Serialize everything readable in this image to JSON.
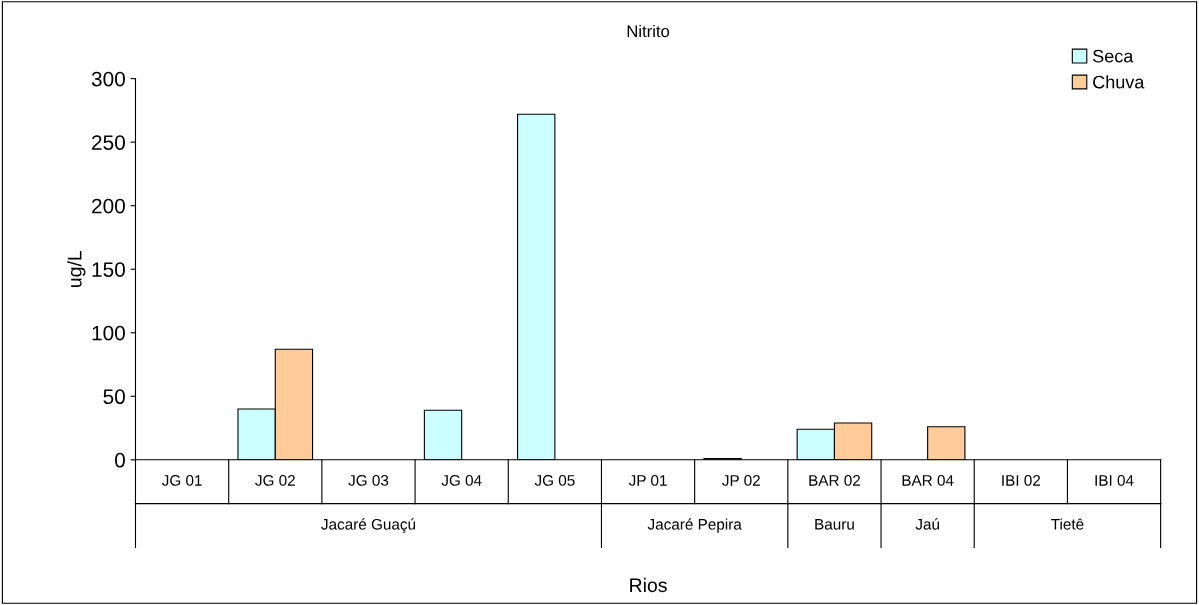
{
  "chart_data": {
    "type": "bar",
    "title": "Nitrito",
    "xlabel": "Rios",
    "ylabel": "ug/L",
    "categories": [
      "JG 01",
      "JG 02",
      "JG 03",
      "JG 04",
      "JG 05",
      "JP 01",
      "JP 02",
      "BAR 02",
      "BAR 04",
      "IBI 02",
      "IBI 04"
    ],
    "series": [
      {
        "name": "Seca",
        "color": "#ccffff",
        "values": [
          null,
          40,
          null,
          39,
          272,
          null,
          1,
          24,
          null,
          null,
          null
        ]
      },
      {
        "name": "Chuva",
        "color": "#ffcc99",
        "values": [
          null,
          87,
          null,
          null,
          null,
          null,
          null,
          29,
          26,
          null,
          null
        ]
      }
    ],
    "annotations": [
      "Jacaré Guaçú",
      "Jacaré Pepira",
      "Bauru",
      "Jaú",
      "Tietê"
    ],
    "ylim": [
      0,
      300
    ],
    "yticks": [
      0,
      50,
      100,
      150,
      200,
      250,
      300
    ],
    "grid": false,
    "legend": "top right"
  }
}
